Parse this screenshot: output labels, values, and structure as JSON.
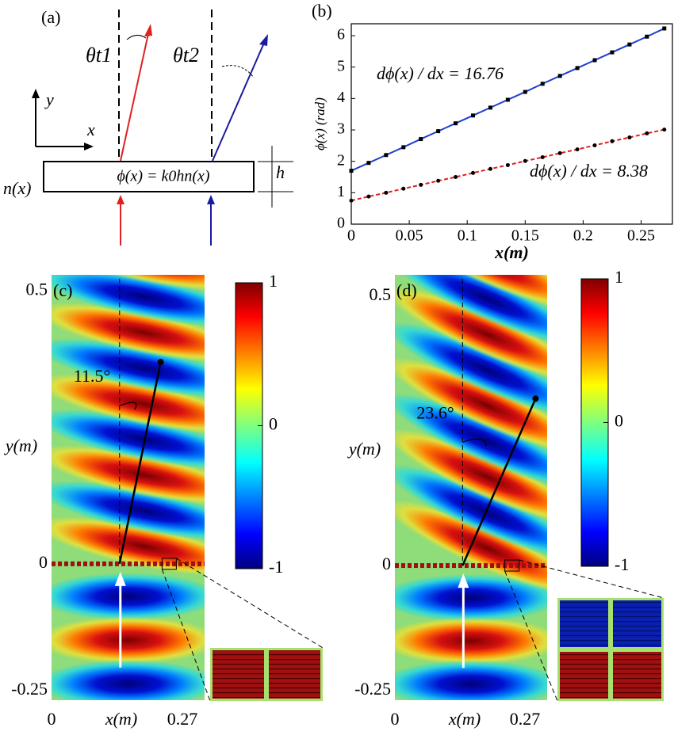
{
  "diagram": {
    "label": "(a)",
    "theta1": "θt1",
    "theta2": "θt2",
    "axis_y": "y",
    "axis_x": "x",
    "index": "n(x)",
    "phase": "ϕ(x) = k0hn(x)",
    "thickness": "h"
  },
  "chart_data": [
    {
      "type": "line",
      "title": "(b)",
      "xlabel": "x(m)",
      "ylabel": "ϕ(x) (rad)",
      "x": [
        0,
        0.015,
        0.03,
        0.045,
        0.06,
        0.075,
        0.09,
        0.105,
        0.12,
        0.135,
        0.15,
        0.165,
        0.18,
        0.195,
        0.21,
        0.225,
        0.24,
        0.255,
        0.27
      ],
      "series": [
        {
          "color": "#1f3fd0",
          "marker": "square",
          "dashed": false,
          "values": [
            1.7,
            1.95,
            2.2,
            2.45,
            2.71,
            2.96,
            3.21,
            3.46,
            3.71,
            3.96,
            4.21,
            4.47,
            4.72,
            4.97,
            5.22,
            5.47,
            5.72,
            5.97,
            6.23
          ]
        },
        {
          "color": "#e02020",
          "marker": "circle",
          "dashed": true,
          "values": [
            0.75,
            0.88,
            1.0,
            1.13,
            1.25,
            1.38,
            1.5,
            1.63,
            1.76,
            1.88,
            2.01,
            2.13,
            2.26,
            2.38,
            2.51,
            2.64,
            2.76,
            2.89,
            3.01
          ]
        }
      ],
      "annotations": [
        "dϕ(x) / dx = 16.76",
        "dϕ(x) / dx = 8.38"
      ],
      "xlim": [
        0,
        0.277
      ],
      "ylim": [
        0,
        6.38
      ],
      "xticks": [
        0,
        0.05,
        0.1,
        0.15,
        0.2,
        0.25
      ],
      "yticks": [
        0,
        1,
        2,
        3,
        4,
        5,
        6
      ]
    },
    {
      "type": "heatmap",
      "title": "(c)",
      "xlabel": "x(m)",
      "ylabel": "y(m)",
      "colormap": "jet",
      "xlim": [
        0,
        0.27
      ],
      "ylim": [
        -0.25,
        0.53
      ],
      "xticks": [
        0,
        0.27
      ],
      "yticks": [
        -0.25,
        0,
        0.5
      ],
      "clim": [
        -1,
        1
      ],
      "cticks": [
        -1,
        0,
        1
      ],
      "annotations": [
        "11.5°"
      ]
    },
    {
      "type": "heatmap",
      "title": "(d)",
      "xlabel": "x(m)",
      "ylabel": "y(m)",
      "colormap": "jet",
      "xlim": [
        0,
        0.27
      ],
      "ylim": [
        -0.25,
        0.54
      ],
      "xticks": [
        0,
        0.27
      ],
      "yticks": [
        -0.25,
        0,
        0.5
      ],
      "clim": [
        -1,
        1
      ],
      "cticks": [
        -1,
        0,
        1
      ],
      "annotations": [
        "23.6°"
      ]
    }
  ]
}
